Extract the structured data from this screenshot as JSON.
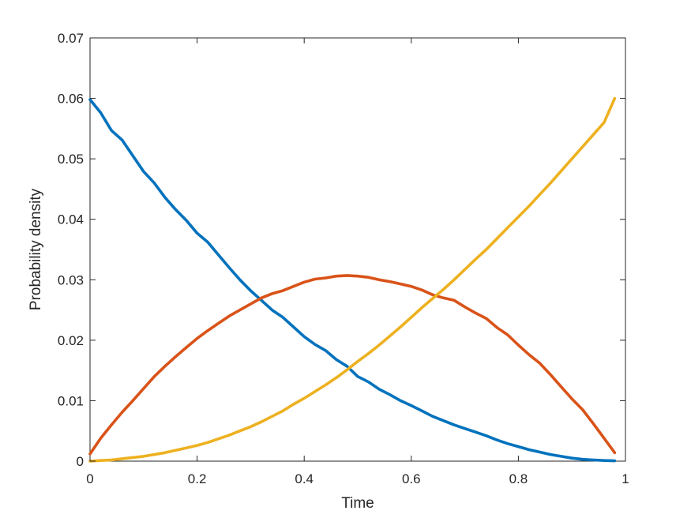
{
  "chart_data": {
    "type": "line",
    "title": "",
    "xlabel": "Time",
    "ylabel": "Probability density",
    "xlim": [
      0,
      1
    ],
    "ylim": [
      0,
      0.07
    ],
    "xticks": [
      0,
      0.2,
      0.4,
      0.6,
      0.8,
      1
    ],
    "xtick_labels": [
      "0",
      "0.2",
      "0.4",
      "0.6",
      "0.8",
      "1"
    ],
    "yticks": [
      0,
      0.01,
      0.02,
      0.03,
      0.04,
      0.05,
      0.06,
      0.07
    ],
    "ytick_labels": [
      "0",
      "0.01",
      "0.02",
      "0.03",
      "0.04",
      "0.05",
      "0.06",
      "0.07"
    ],
    "grid": false,
    "box": true,
    "series": [
      {
        "color": "#0072BD",
        "x": [
          0,
          0.02,
          0.04,
          0.06,
          0.08,
          0.1,
          0.12,
          0.14,
          0.16,
          0.18,
          0.2,
          0.22,
          0.24,
          0.26,
          0.28,
          0.3,
          0.32,
          0.34,
          0.36,
          0.38,
          0.4,
          0.42,
          0.44,
          0.46,
          0.48,
          0.5,
          0.52,
          0.54,
          0.56,
          0.58,
          0.6,
          0.62,
          0.64,
          0.66,
          0.68,
          0.7,
          0.72,
          0.74,
          0.76,
          0.78,
          0.8,
          0.82,
          0.84,
          0.86,
          0.88,
          0.9,
          0.92,
          0.94,
          0.96,
          0.98
        ],
        "y": [
          0.0598,
          0.0576,
          0.0547,
          0.0531,
          0.0505,
          0.0479,
          0.046,
          0.0436,
          0.0416,
          0.0398,
          0.0377,
          0.0362,
          0.0341,
          0.032,
          0.03,
          0.0282,
          0.0266,
          0.025,
          0.0238,
          0.0222,
          0.0206,
          0.0193,
          0.0183,
          0.0168,
          0.0157,
          0.014,
          0.0131,
          0.0119,
          0.011,
          0.01,
          0.0092,
          0.0083,
          0.0074,
          0.0067,
          0.006,
          0.0054,
          0.0048,
          0.0042,
          0.0035,
          0.0029,
          0.0024,
          0.0019,
          0.0015,
          0.0011,
          0.0008,
          0.0005,
          0.0003,
          0.0002,
          0.0001,
          5e-05
        ]
      },
      {
        "color": "#D95319",
        "x": [
          0,
          0.02,
          0.04,
          0.06,
          0.08,
          0.1,
          0.12,
          0.14,
          0.16,
          0.18,
          0.2,
          0.22,
          0.24,
          0.26,
          0.28,
          0.3,
          0.32,
          0.34,
          0.36,
          0.38,
          0.4,
          0.42,
          0.44,
          0.46,
          0.48,
          0.5,
          0.52,
          0.54,
          0.56,
          0.58,
          0.6,
          0.62,
          0.64,
          0.66,
          0.68,
          0.7,
          0.72,
          0.74,
          0.76,
          0.78,
          0.8,
          0.82,
          0.84,
          0.86,
          0.88,
          0.9,
          0.92,
          0.94,
          0.96,
          0.98
        ],
        "y": [
          0.0012,
          0.0038,
          0.006,
          0.0081,
          0.01,
          0.012,
          0.014,
          0.0157,
          0.0173,
          0.0188,
          0.0203,
          0.0216,
          0.0228,
          0.024,
          0.025,
          0.026,
          0.027,
          0.0277,
          0.0282,
          0.0289,
          0.0296,
          0.0301,
          0.0303,
          0.0306,
          0.0307,
          0.0306,
          0.0304,
          0.03,
          0.0297,
          0.0293,
          0.0289,
          0.0283,
          0.0275,
          0.027,
          0.0266,
          0.0255,
          0.0245,
          0.0236,
          0.0221,
          0.0209,
          0.0192,
          0.0176,
          0.0162,
          0.0143,
          0.0123,
          0.0103,
          0.0085,
          0.0062,
          0.0038,
          0.0014
        ]
      },
      {
        "color": "#EDB120",
        "x": [
          0,
          0.02,
          0.04,
          0.06,
          0.08,
          0.1,
          0.12,
          0.14,
          0.16,
          0.18,
          0.2,
          0.22,
          0.24,
          0.26,
          0.28,
          0.3,
          0.32,
          0.34,
          0.36,
          0.38,
          0.4,
          0.42,
          0.44,
          0.46,
          0.48,
          0.5,
          0.52,
          0.54,
          0.56,
          0.58,
          0.6,
          0.62,
          0.64,
          0.66,
          0.68,
          0.7,
          0.72,
          0.74,
          0.76,
          0.78,
          0.8,
          0.82,
          0.84,
          0.86,
          0.88,
          0.9,
          0.92,
          0.94,
          0.96,
          0.98
        ],
        "y": [
          0.0,
          0.0001,
          0.0002,
          0.0004,
          0.0006,
          0.0008,
          0.0011,
          0.0014,
          0.0018,
          0.0022,
          0.0026,
          0.0031,
          0.0037,
          0.0043,
          0.005,
          0.0057,
          0.0065,
          0.0074,
          0.0083,
          0.0094,
          0.0104,
          0.0115,
          0.0126,
          0.0138,
          0.0151,
          0.0165,
          0.0178,
          0.0192,
          0.0207,
          0.0222,
          0.0238,
          0.0254,
          0.0269,
          0.0284,
          0.03,
          0.0317,
          0.0334,
          0.035,
          0.0368,
          0.0386,
          0.0404,
          0.0422,
          0.0441,
          0.046,
          0.048,
          0.05,
          0.052,
          0.054,
          0.056,
          0.06
        ]
      }
    ]
  }
}
